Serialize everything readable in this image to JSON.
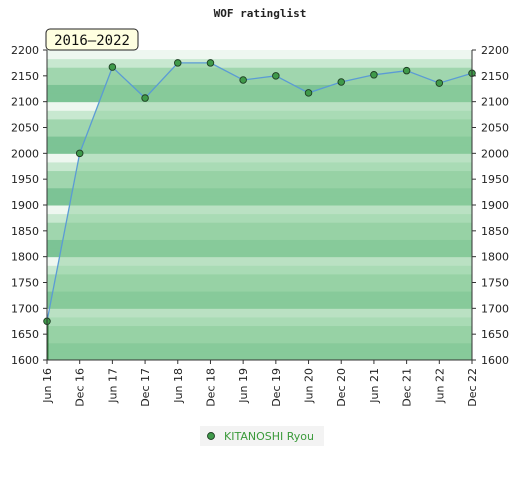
{
  "chart_data": {
    "type": "line",
    "title": "WOF ratinglist",
    "range_label": "2016–2022",
    "ylim": [
      1600,
      2200
    ],
    "y_ticks": [
      1600,
      1650,
      1700,
      1750,
      1800,
      1850,
      1900,
      1950,
      2000,
      2050,
      2100,
      2150,
      2200
    ],
    "y_axis_both_sides": true,
    "categories": [
      "Jun 16",
      "Dec 16",
      "Jun 17",
      "Dec 17",
      "Jun 18",
      "Dec 18",
      "Jun 19",
      "Dec 19",
      "Jun 20",
      "Dec 20",
      "Jun 21",
      "Dec 21",
      "Jun 22",
      "Dec 22"
    ],
    "series": [
      {
        "name": "KITANOSHI Ryou",
        "values": [
          1675,
          2000,
          2167,
          2107,
          2175,
          2175,
          2142,
          2150,
          2117,
          2138,
          2152,
          2160,
          2136,
          2155
        ]
      }
    ],
    "legend_position": "bottom-center",
    "colors": {
      "line": "#5b9bd5",
      "marker": "#3f9a4a",
      "fill": "#8fcf9f",
      "band_dark": "#7cc395",
      "band_mid": "#a0d6ae",
      "band_light": "#c8e8d0",
      "band_white": "#eef7f0",
      "legend_text": "#3a9a3a"
    }
  }
}
